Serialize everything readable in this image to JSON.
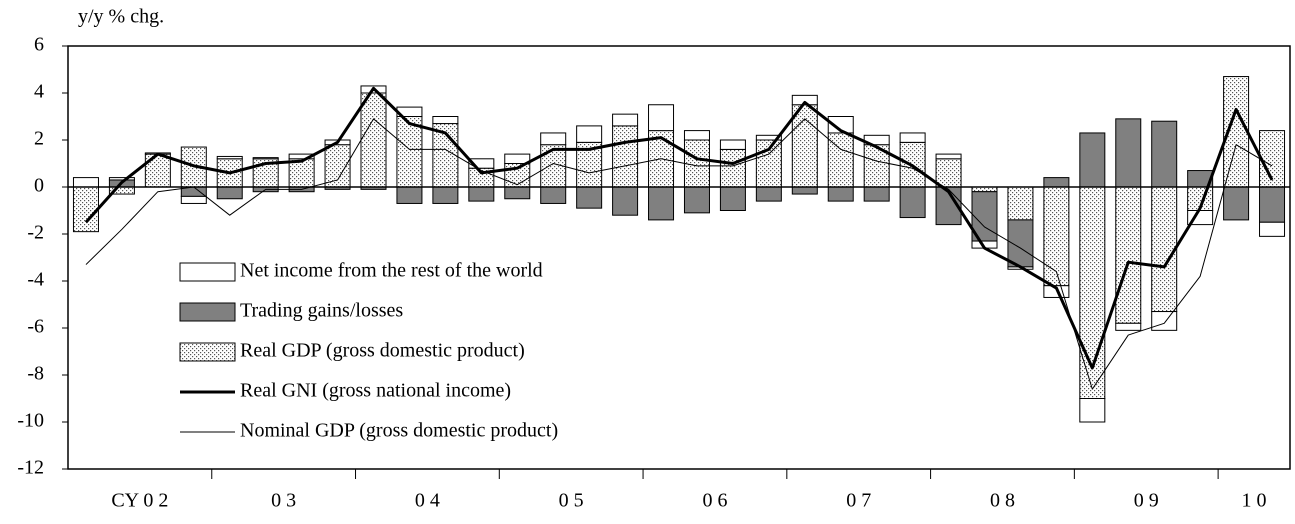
{
  "chart_data": {
    "type": "bar",
    "ylabel": "y/y % chg.",
    "categories": [
      "CY 0 2",
      null,
      null,
      null,
      "0 3",
      null,
      null,
      null,
      "0 4",
      null,
      null,
      null,
      "0 5",
      null,
      null,
      null,
      "0 6",
      null,
      null,
      null,
      "0 7",
      null,
      null,
      null,
      "0 8",
      null,
      null,
      null,
      "0 9",
      null,
      null,
      null,
      "1 0",
      null
    ],
    "ylim": [
      -12,
      6
    ],
    "yticks": [
      -12,
      -10,
      -8,
      -6,
      -4,
      -2,
      0,
      2,
      4,
      6
    ],
    "legend": "lower left",
    "series": [
      {
        "name": "Real GDP (gross domestic product)",
        "mark": "bar",
        "color": "dots",
        "values": [
          -1.9,
          -0.3,
          1.4,
          1.7,
          1.2,
          1.2,
          1.2,
          1.8,
          4.0,
          3.0,
          2.7,
          0.8,
          1.0,
          1.8,
          1.9,
          2.6,
          2.4,
          2.0,
          1.6,
          2.0,
          3.5,
          2.3,
          1.8,
          1.9,
          1.2,
          -0.2,
          -1.4,
          -4.2,
          -9.0,
          -5.8,
          -5.3,
          -1.0,
          4.7,
          2.4
        ]
      },
      {
        "name": "Trading gains/losses",
        "mark": "bar",
        "color": "#808080",
        "values": [
          0,
          0.3,
          0,
          -0.4,
          -0.5,
          -0.2,
          -0.2,
          -0.1,
          -0.1,
          -0.7,
          -0.7,
          -0.6,
          -0.5,
          -0.7,
          -0.9,
          -1.2,
          -1.4,
          -1.1,
          -1.0,
          -0.6,
          -0.3,
          -0.6,
          -0.6,
          -1.3,
          -1.6,
          -2.1,
          -2.0,
          0.4,
          2.3,
          2.9,
          2.8,
          0.7,
          -1.4,
          -1.5
        ]
      },
      {
        "name": "Net income from the rest of the world",
        "mark": "bar",
        "color": "#ffffff",
        "values": [
          0.4,
          0.1,
          0.05,
          -0.3,
          0.1,
          0.05,
          0.2,
          0.2,
          0.3,
          0.4,
          0.3,
          0.4,
          0.4,
          0.5,
          0.7,
          0.5,
          1.1,
          0.4,
          0.4,
          0.2,
          0.4,
          0.7,
          0.4,
          0.4,
          0.2,
          -0.3,
          -0.1,
          -0.5,
          -1.0,
          -0.3,
          -0.8,
          -0.6,
          0.0,
          -0.6
        ]
      },
      {
        "name": "Real GNI (gross national income)",
        "mark": "line",
        "color": "#000000",
        "width": 3,
        "values": [
          -1.5,
          0.2,
          1.4,
          0.9,
          0.6,
          1.0,
          1.1,
          1.9,
          4.2,
          2.7,
          2.3,
          0.6,
          0.8,
          1.6,
          1.6,
          1.9,
          2.1,
          1.2,
          1.0,
          1.6,
          3.6,
          2.4,
          1.7,
          0.9,
          -0.2,
          -2.6,
          -3.4,
          -4.3,
          -7.7,
          -3.2,
          -3.4,
          -0.9,
          3.3,
          0.3
        ]
      },
      {
        "name": "Nominal GDP (gross domestic product)",
        "mark": "line",
        "color": "#000000",
        "width": 1,
        "values": [
          -3.3,
          -1.8,
          -0.2,
          0.0,
          -1.2,
          -0.1,
          -0.1,
          0.3,
          2.9,
          1.6,
          1.6,
          0.7,
          0.1,
          1.0,
          0.6,
          0.9,
          1.2,
          0.9,
          0.9,
          1.4,
          2.9,
          1.6,
          1.1,
          0.8,
          -0.1,
          -1.7,
          -2.6,
          -3.6,
          -8.6,
          -6.3,
          -5.8,
          -3.8,
          1.8,
          0.9
        ]
      }
    ],
    "legend_order": [
      2,
      1,
      0,
      3,
      4
    ]
  }
}
